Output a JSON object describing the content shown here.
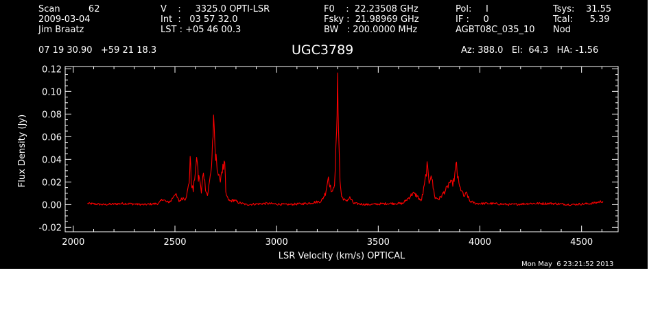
{
  "header": {
    "col1": [
      "Scan          62",
      "2009-03-04",
      "Jim Braatz"
    ],
    "col2": [
      "V    :     3325.0 OPTI-LSR",
      "Int  :   03 57 32.0",
      "LST : +05 46 00.3"
    ],
    "col3": [
      "F0    :  22.23508 GHz",
      "Fsky :  21.98969 GHz",
      "BW   : 200.0000 MHz"
    ],
    "col4": [
      "Pol:     I",
      "IF :     0",
      "AGBT08C_035_10"
    ],
    "col5": [
      "Tsys:    31.55",
      "Tcal:      5.39",
      "Nod"
    ],
    "coords": "07 19 30.90   +59 21 18.3",
    "source": "UGC3789",
    "pointing": "Az: 388.0   El:  64.3   HA: -1.56",
    "timestamp": "Mon May  6 23:21:52 2013"
  },
  "chart_data": {
    "type": "line",
    "title": "UGC3789",
    "xlabel": "LSR Velocity (km/s) OPTICAL",
    "ylabel": "Flux Density (Jy)",
    "xlim": [
      1960,
      4680
    ],
    "ylim": [
      -0.024,
      0.122
    ],
    "xticks": [
      2000,
      2500,
      3000,
      3500,
      4000,
      4500
    ],
    "yticks": [
      "-0.02",
      "0.00",
      "0.02",
      "0.04",
      "0.06",
      "0.08",
      "0.10",
      "0.12"
    ],
    "series": [
      {
        "color": "#ff0000",
        "x": [
          2070,
          2150,
          2250,
          2350,
          2420,
          2440,
          2460,
          2480,
          2500,
          2520,
          2540,
          2550,
          2560,
          2570,
          2575,
          2580,
          2590,
          2600,
          2610,
          2615,
          2620,
          2630,
          2640,
          2650,
          2660,
          2670,
          2680,
          2685,
          2690,
          2700,
          2705,
          2710,
          2720,
          2730,
          2745,
          2750,
          2760,
          2770,
          2790,
          2810,
          2850,
          2950,
          3050,
          3150,
          3220,
          3240,
          3255,
          3265,
          3275,
          3285,
          3295,
          3300,
          3305,
          3312,
          3320,
          3340,
          3360,
          3380,
          3450,
          3550,
          3620,
          3650,
          3670,
          3690,
          3710,
          3720,
          3730,
          3740,
          3750,
          3760,
          3770,
          3780,
          3800,
          3820,
          3840,
          3850,
          3860,
          3870,
          3880,
          3885,
          3890,
          3900,
          3910,
          3920,
          3935,
          3950,
          3980,
          4050,
          4150,
          4250,
          4350,
          4450,
          4550,
          4605
        ],
        "y": [
          0.001,
          0.0,
          0.001,
          0.0,
          0.001,
          0.005,
          0.002,
          0.003,
          0.01,
          0.003,
          0.006,
          0.005,
          0.01,
          0.02,
          0.043,
          0.02,
          0.012,
          0.03,
          0.04,
          0.022,
          0.025,
          0.01,
          0.03,
          0.015,
          0.008,
          0.02,
          0.035,
          0.055,
          0.071,
          0.04,
          0.04,
          0.03,
          0.02,
          0.03,
          0.035,
          0.01,
          0.005,
          0.003,
          0.004,
          0.002,
          0.0,
          0.001,
          0.0,
          0.001,
          0.003,
          0.01,
          0.025,
          0.015,
          0.01,
          0.02,
          0.06,
          0.104,
          0.07,
          0.02,
          0.007,
          0.003,
          0.006,
          0.001,
          0.0,
          0.001,
          0.001,
          0.006,
          0.01,
          0.008,
          0.003,
          0.01,
          0.02,
          0.034,
          0.02,
          0.028,
          0.015,
          0.006,
          0.005,
          0.01,
          0.015,
          0.02,
          0.018,
          0.02,
          0.03,
          0.036,
          0.025,
          0.015,
          0.013,
          0.007,
          0.01,
          0.003,
          0.001,
          0.001,
          0.0,
          0.001,
          0.001,
          0.0,
          0.001,
          0.003
        ]
      }
    ]
  }
}
